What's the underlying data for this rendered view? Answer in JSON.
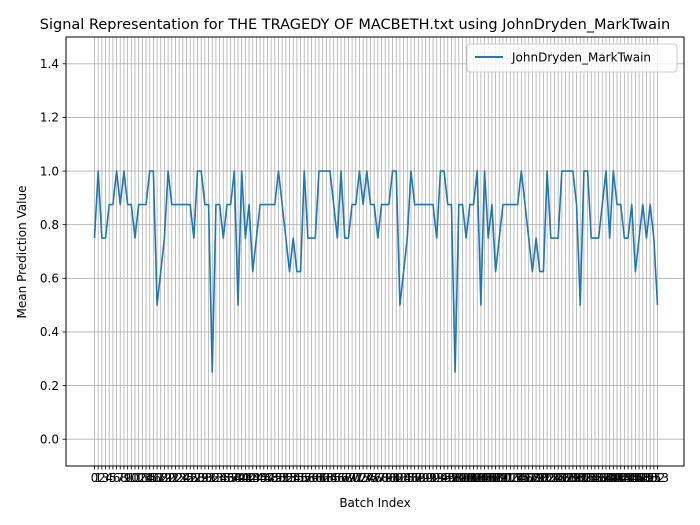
{
  "chart_data": {
    "type": "line",
    "title": "Signal Representation for THE TRAGEDY OF MACBETH.txt using JohnDryden_MarkTwain",
    "xlabel": "Batch Index",
    "ylabel": "Mean Prediction Value",
    "ylim": [
      -0.1,
      1.5
    ],
    "yticks": [
      "0.0",
      "0.2",
      "0.4",
      "0.6",
      "0.8",
      "1.0",
      "1.2",
      "1.4"
    ],
    "grid": true,
    "legend_position": "top-right",
    "series": [
      {
        "name": "JohnDryden_MarkTwain",
        "color": "#1f77b4",
        "values": [
          0.75,
          1.0,
          0.75,
          0.75,
          0.875,
          0.875,
          1.0,
          0.875,
          1.0,
          0.875,
          0.875,
          0.75,
          0.875,
          0.875,
          0.875,
          1.0,
          1.0,
          0.5,
          0.625,
          0.75,
          1.0,
          0.875,
          0.875,
          0.875,
          0.875,
          0.875,
          0.875,
          0.75,
          1.0,
          1.0,
          0.875,
          0.875,
          0.25,
          0.875,
          0.875,
          0.75,
          0.875,
          0.875,
          1.0,
          0.5,
          1.0,
          0.75,
          0.875,
          0.625,
          0.75,
          0.875,
          0.875,
          0.875,
          0.875,
          0.875,
          1.0,
          0.875,
          0.75,
          0.625,
          0.75,
          0.625,
          0.625,
          1.0,
          0.75,
          0.75,
          0.75,
          1.0,
          1.0,
          1.0,
          1.0,
          0.875,
          0.75,
          1.0,
          0.75,
          0.75,
          0.875,
          0.875,
          1.0,
          0.875,
          1.0,
          0.875,
          0.875,
          0.75,
          0.875,
          0.875,
          0.875,
          1.0,
          1.0,
          0.5,
          0.625,
          0.75,
          1.0,
          0.875,
          0.875,
          0.875,
          0.875,
          0.875,
          0.875,
          0.75,
          1.0,
          1.0,
          0.875,
          0.875,
          0.25,
          0.875,
          0.875,
          0.75,
          0.875,
          0.875,
          1.0,
          0.5,
          1.0,
          0.75,
          0.875,
          0.625,
          0.75,
          0.875,
          0.875,
          0.875,
          0.875,
          0.875,
          1.0,
          0.875,
          0.75,
          0.625,
          0.75,
          0.625,
          0.625,
          1.0,
          0.75,
          0.75,
          0.75,
          1.0,
          1.0,
          1.0,
          1.0,
          0.875,
          0.5,
          1.0,
          1.0,
          0.75,
          0.75,
          0.75,
          0.875,
          1.0,
          0.75,
          1.0,
          0.875,
          0.875,
          0.75,
          0.75,
          0.875,
          0.625,
          0.75,
          0.875,
          0.75,
          0.875,
          0.75,
          0.5
        ]
      }
    ]
  }
}
